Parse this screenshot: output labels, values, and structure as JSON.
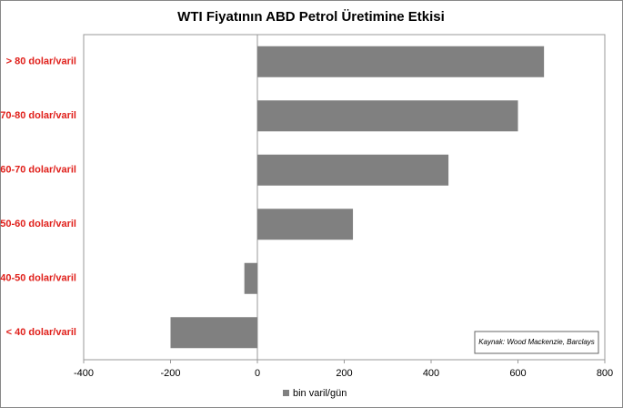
{
  "chart_data": {
    "type": "hbar",
    "title": "WTI Fiyatının ABD Petrol Üretimine Etkisi",
    "categories": [
      "> 80 dolar/varil",
      "70-80 dolar/varil",
      "60-70 dolar/varil",
      "50-60 dolar/varil",
      "40-50 dolar/varil",
      "< 40 dolar/varil"
    ],
    "series": [
      {
        "name": "bin varil/gün",
        "color": "#808080",
        "values": [
          660,
          600,
          440,
          220,
          -30,
          -200
        ]
      }
    ],
    "xlim": [
      -400,
      800
    ],
    "xticks": [
      -400,
      -200,
      0,
      200,
      400,
      600,
      800
    ],
    "annotation": "Kaynak: Wood Mackenzie, Barclays",
    "legend": "bottom",
    "category_color": "#e0201b"
  }
}
